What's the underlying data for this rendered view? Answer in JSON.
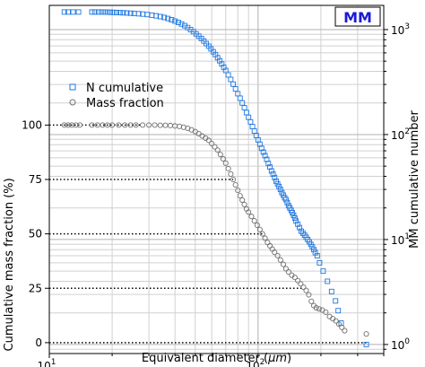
{
  "chart_data": {
    "type": "scatter",
    "title": "",
    "badge": "MM",
    "xlabel_prefix": "Equivalent diameter (",
    "xlabel_unit": "μm",
    "xlabel_suffix": ")",
    "ylabel_left": "Cumulative mass fraction (%)",
    "ylabel_right": "MM cumulative number",
    "x_scale": "log",
    "xlim": [
      10,
      400
    ],
    "ylim_left": [
      -5,
      155
    ],
    "ylim_right_log": [
      0.82,
      1700
    ],
    "x_ticks": [
      {
        "value": 10,
        "label": "10",
        "exp": "1"
      },
      {
        "value": 100,
        "label": "10",
        "exp": "2"
      }
    ],
    "y_left_ticks": [
      0,
      25,
      50,
      75,
      100
    ],
    "y_right_ticks": [
      {
        "value": 1,
        "label": "10",
        "exp": "0"
      },
      {
        "value": 10,
        "label": "10",
        "exp": "1"
      },
      {
        "value": 100,
        "label": "10",
        "exp": "2"
      },
      {
        "value": 1000,
        "label": "10",
        "exp": "3"
      }
    ],
    "grid": true,
    "legend_position": "upper-left",
    "colors": {
      "n_cumulative": "#1f77e0",
      "mass_fraction": "#707070",
      "badge": "#1a1ad6"
    },
    "series": [
      {
        "name": "N cumulative",
        "axis": "right",
        "marker": "square",
        "points": [
          [
            11.8,
            1470
          ],
          [
            12.3,
            1470
          ],
          [
            13.0,
            1470
          ],
          [
            13.8,
            1470
          ],
          [
            16.0,
            1470
          ],
          [
            16.5,
            1470
          ],
          [
            17.2,
            1470
          ],
          [
            17.8,
            1470
          ],
          [
            18.4,
            1468
          ],
          [
            19.0,
            1465
          ],
          [
            19.6,
            1462
          ],
          [
            20.3,
            1458
          ],
          [
            21.0,
            1455
          ],
          [
            21.8,
            1450
          ],
          [
            22.6,
            1445
          ],
          [
            23.5,
            1440
          ],
          [
            24.5,
            1432
          ],
          [
            25.5,
            1425
          ],
          [
            26.8,
            1415
          ],
          [
            28.0,
            1405
          ],
          [
            29.5,
            1390
          ],
          [
            31.0,
            1372
          ],
          [
            32.5,
            1352
          ],
          [
            34.0,
            1330
          ],
          [
            35.5,
            1305
          ],
          [
            37.0,
            1275
          ],
          [
            38.5,
            1240
          ],
          [
            40.0,
            1205
          ],
          [
            41.5,
            1170
          ],
          [
            43.0,
            1130
          ],
          [
            44.5,
            1090
          ],
          [
            46.0,
            1045
          ],
          [
            47.5,
            1000
          ],
          [
            49.0,
            955
          ],
          [
            50.5,
            910
          ],
          [
            52.0,
            866
          ],
          [
            53.5,
            822
          ],
          [
            55.0,
            778
          ],
          [
            56.5,
            735
          ],
          [
            58.0,
            695
          ],
          [
            59.5,
            655
          ],
          [
            61.0,
            615
          ],
          [
            62.5,
            578
          ],
          [
            64.0,
            540
          ],
          [
            65.5,
            505
          ],
          [
            67.0,
            470
          ],
          [
            68.5,
            438
          ],
          [
            70.0,
            408
          ],
          [
            72.0,
            370
          ],
          [
            74.0,
            335
          ],
          [
            76.0,
            302
          ],
          [
            78.0,
            272
          ],
          [
            80.0,
            245
          ],
          [
            82.0,
            222
          ],
          [
            84.0,
            200
          ],
          [
            86.0,
            180
          ],
          [
            88.0,
            162
          ],
          [
            90.0,
            146
          ],
          [
            92.0,
            132
          ],
          [
            94.0,
            119
          ],
          [
            96.0,
            108
          ],
          [
            98.0,
            98
          ],
          [
            100.0,
            89
          ],
          [
            102.0,
            81
          ],
          [
            104.0,
            74
          ],
          [
            106.0,
            68
          ],
          [
            108.0,
            63
          ],
          [
            110.0,
            58
          ],
          [
            112.0,
            53
          ],
          [
            114.0,
            49
          ],
          [
            116.0,
            45
          ],
          [
            118.0,
            42
          ],
          [
            120.0,
            39
          ],
          [
            122.0,
            36
          ],
          [
            124.0,
            34
          ],
          [
            126.0,
            32
          ],
          [
            128.0,
            30
          ],
          [
            130.0,
            28
          ],
          [
            132.0,
            26.5
          ],
          [
            134.0,
            25
          ],
          [
            136.0,
            24
          ],
          [
            138.0,
            22.5
          ],
          [
            140.0,
            21
          ],
          [
            142.0,
            20
          ],
          [
            144.0,
            19
          ],
          [
            146.0,
            18
          ],
          [
            148.0,
            17
          ],
          [
            150.0,
            16
          ],
          [
            152.0,
            15
          ],
          [
            155.0,
            14
          ],
          [
            158.0,
            13
          ],
          [
            161.0,
            12
          ],
          [
            164.0,
            11.5
          ],
          [
            167.0,
            11
          ],
          [
            170.0,
            10.5
          ],
          [
            173.0,
            10
          ],
          [
            176.0,
            9.5
          ],
          [
            179.0,
            9
          ],
          [
            182.0,
            8.5
          ],
          [
            185.0,
            8
          ],
          [
            188.0,
            7.5
          ],
          [
            192.0,
            7
          ],
          [
            197.0,
            6
          ],
          [
            205.0,
            5
          ],
          [
            215.0,
            4
          ],
          [
            225.0,
            3.2
          ],
          [
            235.0,
            2.6
          ],
          [
            242.0,
            2.1
          ],
          [
            250.0,
            1.6
          ],
          [
            330.0,
            1.0
          ]
        ]
      },
      {
        "name": "Mass fraction",
        "axis": "left",
        "marker": "circle",
        "points": [
          [
            11.8,
            100
          ],
          [
            12.3,
            100
          ],
          [
            12.8,
            100
          ],
          [
            13.4,
            100
          ],
          [
            14.0,
            100
          ],
          [
            16.0,
            100
          ],
          [
            17.0,
            100
          ],
          [
            18.0,
            100
          ],
          [
            19.0,
            100
          ],
          [
            20.0,
            100
          ],
          [
            21.5,
            100
          ],
          [
            23.0,
            100
          ],
          [
            24.5,
            100
          ],
          [
            26.0,
            100
          ],
          [
            28.0,
            100
          ],
          [
            30.0,
            100
          ],
          [
            32.0,
            100
          ],
          [
            34.0,
            99.9
          ],
          [
            36.0,
            99.9
          ],
          [
            38.0,
            99.8
          ],
          [
            40.0,
            99.6
          ],
          [
            42.0,
            99.4
          ],
          [
            44.0,
            99.0
          ],
          [
            46.0,
            98.5
          ],
          [
            48.0,
            97.8
          ],
          [
            50.0,
            97.0
          ],
          [
            52.0,
            96.0
          ],
          [
            54.0,
            95.0
          ],
          [
            56.0,
            94.0
          ],
          [
            58.0,
            93.0
          ],
          [
            60.0,
            91.5
          ],
          [
            62.0,
            90.0
          ],
          [
            64.0,
            88.5
          ],
          [
            66.0,
            86.5
          ],
          [
            68.0,
            84.5
          ],
          [
            70.0,
            82.5
          ],
          [
            72.0,
            80.0
          ],
          [
            74.0,
            77.5
          ],
          [
            76.0,
            75.0
          ],
          [
            78.0,
            72.5
          ],
          [
            80.0,
            70.0
          ],
          [
            82.0,
            67.5
          ],
          [
            84.0,
            65.5
          ],
          [
            86.0,
            63.5
          ],
          [
            88.0,
            61.5
          ],
          [
            90.0,
            60.0
          ],
          [
            93.0,
            58.0
          ],
          [
            96.0,
            56.0
          ],
          [
            99.0,
            54.0
          ],
          [
            102.0,
            52.0
          ],
          [
            105.0,
            50.0
          ],
          [
            108.0,
            48.0
          ],
          [
            111.0,
            46.0
          ],
          [
            114.0,
            44.5
          ],
          [
            117.0,
            43.0
          ],
          [
            120.0,
            41.5
          ],
          [
            124.0,
            40.0
          ],
          [
            128.0,
            38.0
          ],
          [
            132.0,
            36.0
          ],
          [
            136.0,
            34.0
          ],
          [
            140.0,
            32.5
          ],
          [
            145.0,
            31.0
          ],
          [
            150.0,
            30.0
          ],
          [
            155.0,
            28.5
          ],
          [
            160.0,
            27.0
          ],
          [
            165.0,
            25.5
          ],
          [
            170.0,
            24.0
          ],
          [
            175.0,
            22.0
          ],
          [
            180.0,
            19.0
          ],
          [
            185.0,
            17.0
          ],
          [
            190.0,
            16.0
          ],
          [
            196.0,
            15.5
          ],
          [
            203.0,
            15.0
          ],
          [
            211.0,
            14.0
          ],
          [
            220.0,
            12.0
          ],
          [
            228.0,
            11.0
          ],
          [
            236.0,
            10.0
          ],
          [
            244.0,
            8.5
          ],
          [
            252.0,
            7.0
          ],
          [
            260.0,
            5.5
          ],
          [
            330.0,
            4.0
          ]
        ]
      }
    ],
    "reference_lines": [
      {
        "y": 100,
        "x_to": 28
      },
      {
        "y": 75,
        "x_to": 76
      },
      {
        "y": 50,
        "x_to": 105
      },
      {
        "y": 25,
        "x_to": 166
      },
      {
        "y": 0,
        "x_to": 330
      }
    ]
  }
}
